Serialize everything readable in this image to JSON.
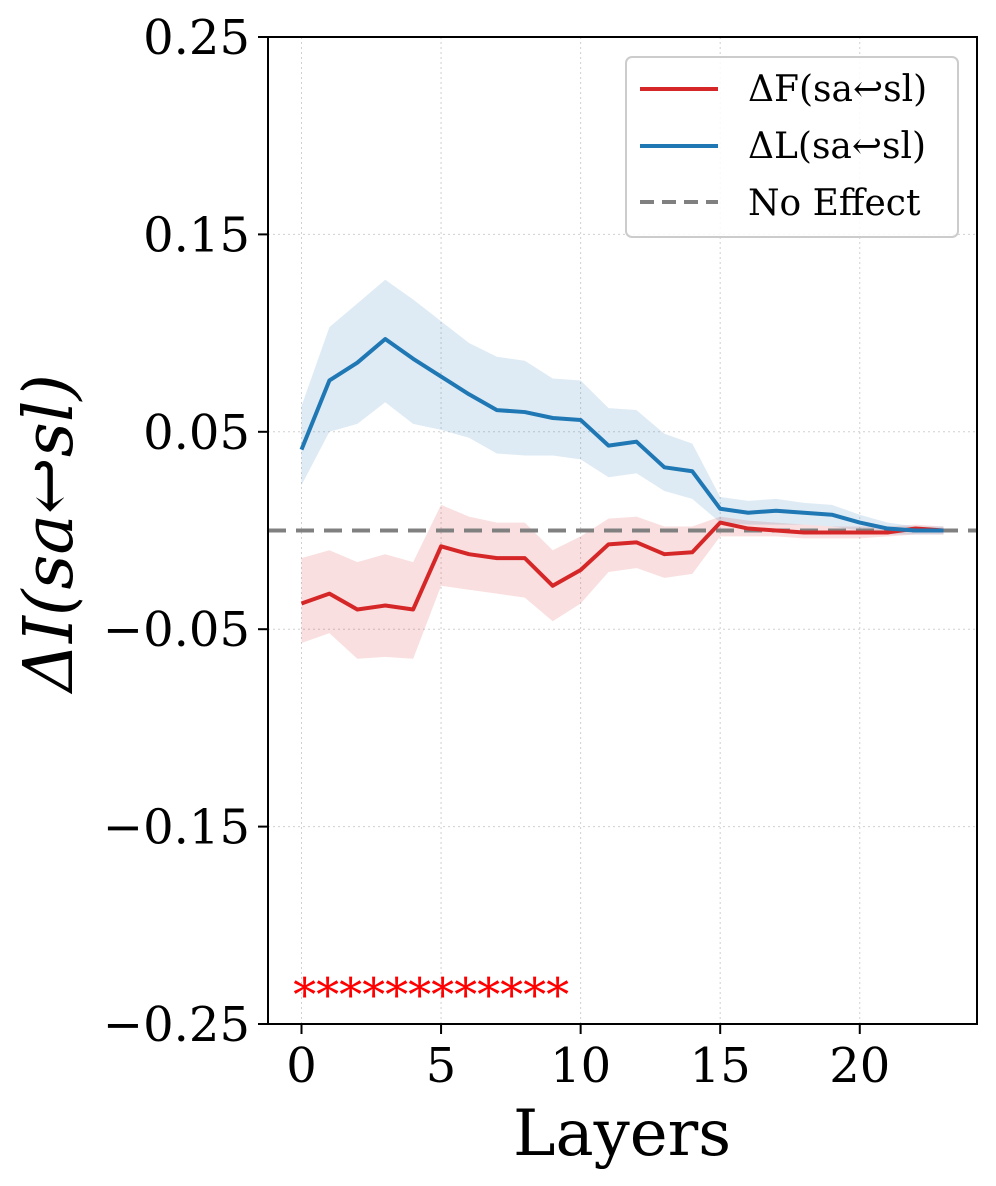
{
  "chart_data": {
    "type": "line",
    "xlabel": "Layers",
    "ylabel": "ΔI(s_a ↩ s_l)",
    "ylabel_display": "ΔI(sa↩sl)",
    "xlim": [
      -1.2,
      24.2
    ],
    "ylim": [
      -0.25,
      0.25
    ],
    "xticks": [
      0,
      5,
      10,
      15,
      20
    ],
    "xtick_labels": [
      "0",
      "5",
      "10",
      "15",
      "20"
    ],
    "yticks": [
      0.25,
      0.15,
      0.05,
      -0.05,
      -0.15,
      -0.25
    ],
    "ytick_labels": [
      "0.25",
      "0.15",
      "0.05",
      "−0.05",
      "−0.15",
      "−0.25"
    ],
    "grid": true,
    "legend_position": "top-right",
    "x": [
      0,
      1,
      2,
      3,
      4,
      5,
      6,
      7,
      8,
      9,
      10,
      11,
      12,
      13,
      14,
      15,
      16,
      17,
      18,
      19,
      20,
      21,
      22,
      23
    ],
    "series": [
      {
        "name": "ΔF(s_a ↩ s_l)",
        "legend_label": "ΔF(sa↩sl)",
        "color": "#d62728",
        "values": [
          -0.037,
          -0.032,
          -0.04,
          -0.038,
          -0.04,
          -0.008,
          -0.012,
          -0.014,
          -0.014,
          -0.028,
          -0.02,
          -0.007,
          -0.006,
          -0.012,
          -0.011,
          0.004,
          0.001,
          0.0,
          -0.001,
          -0.001,
          -0.001,
          -0.001,
          0.001,
          0.0
        ],
        "lower": [
          -0.057,
          -0.052,
          -0.065,
          -0.064,
          -0.065,
          -0.028,
          -0.03,
          -0.032,
          -0.034,
          -0.046,
          -0.037,
          -0.021,
          -0.019,
          -0.024,
          -0.022,
          -0.003,
          -0.003,
          -0.003,
          -0.004,
          -0.004,
          -0.004,
          -0.003,
          -0.002,
          -0.002
        ],
        "upper": [
          -0.014,
          -0.01,
          -0.016,
          -0.012,
          -0.016,
          0.013,
          0.007,
          0.004,
          0.004,
          -0.01,
          -0.003,
          0.006,
          0.007,
          0.002,
          0.002,
          0.007,
          0.005,
          0.004,
          0.003,
          0.002,
          0.002,
          0.002,
          0.003,
          0.002
        ]
      },
      {
        "name": "ΔL(s_a ↩ s_l)",
        "legend_label": "ΔL(sa↩sl)",
        "color": "#1f77b4",
        "values": [
          0.041,
          0.076,
          0.085,
          0.097,
          0.087,
          0.078,
          0.069,
          0.061,
          0.06,
          0.057,
          0.056,
          0.043,
          0.045,
          0.032,
          0.03,
          0.011,
          0.009,
          0.01,
          0.009,
          0.008,
          0.004,
          0.001,
          0.0,
          0.0
        ],
        "lower": [
          0.023,
          0.05,
          0.054,
          0.065,
          0.054,
          0.051,
          0.047,
          0.039,
          0.038,
          0.038,
          0.036,
          0.027,
          0.029,
          0.02,
          0.016,
          0.004,
          0.003,
          0.003,
          0.003,
          0.002,
          0.0,
          -0.002,
          -0.002,
          -0.002
        ],
        "upper": [
          0.063,
          0.103,
          0.115,
          0.127,
          0.117,
          0.106,
          0.095,
          0.088,
          0.086,
          0.077,
          0.076,
          0.062,
          0.061,
          0.049,
          0.044,
          0.017,
          0.015,
          0.016,
          0.014,
          0.013,
          0.008,
          0.004,
          0.002,
          0.002
        ]
      }
    ],
    "reference_line": {
      "name": "No Effect",
      "y": 0.0,
      "color": "#808080",
      "style": "dashed"
    },
    "annotations": [
      {
        "text": "************",
        "color": "#ff0000",
        "x_start": -0.3,
        "y": -0.233
      }
    ]
  }
}
